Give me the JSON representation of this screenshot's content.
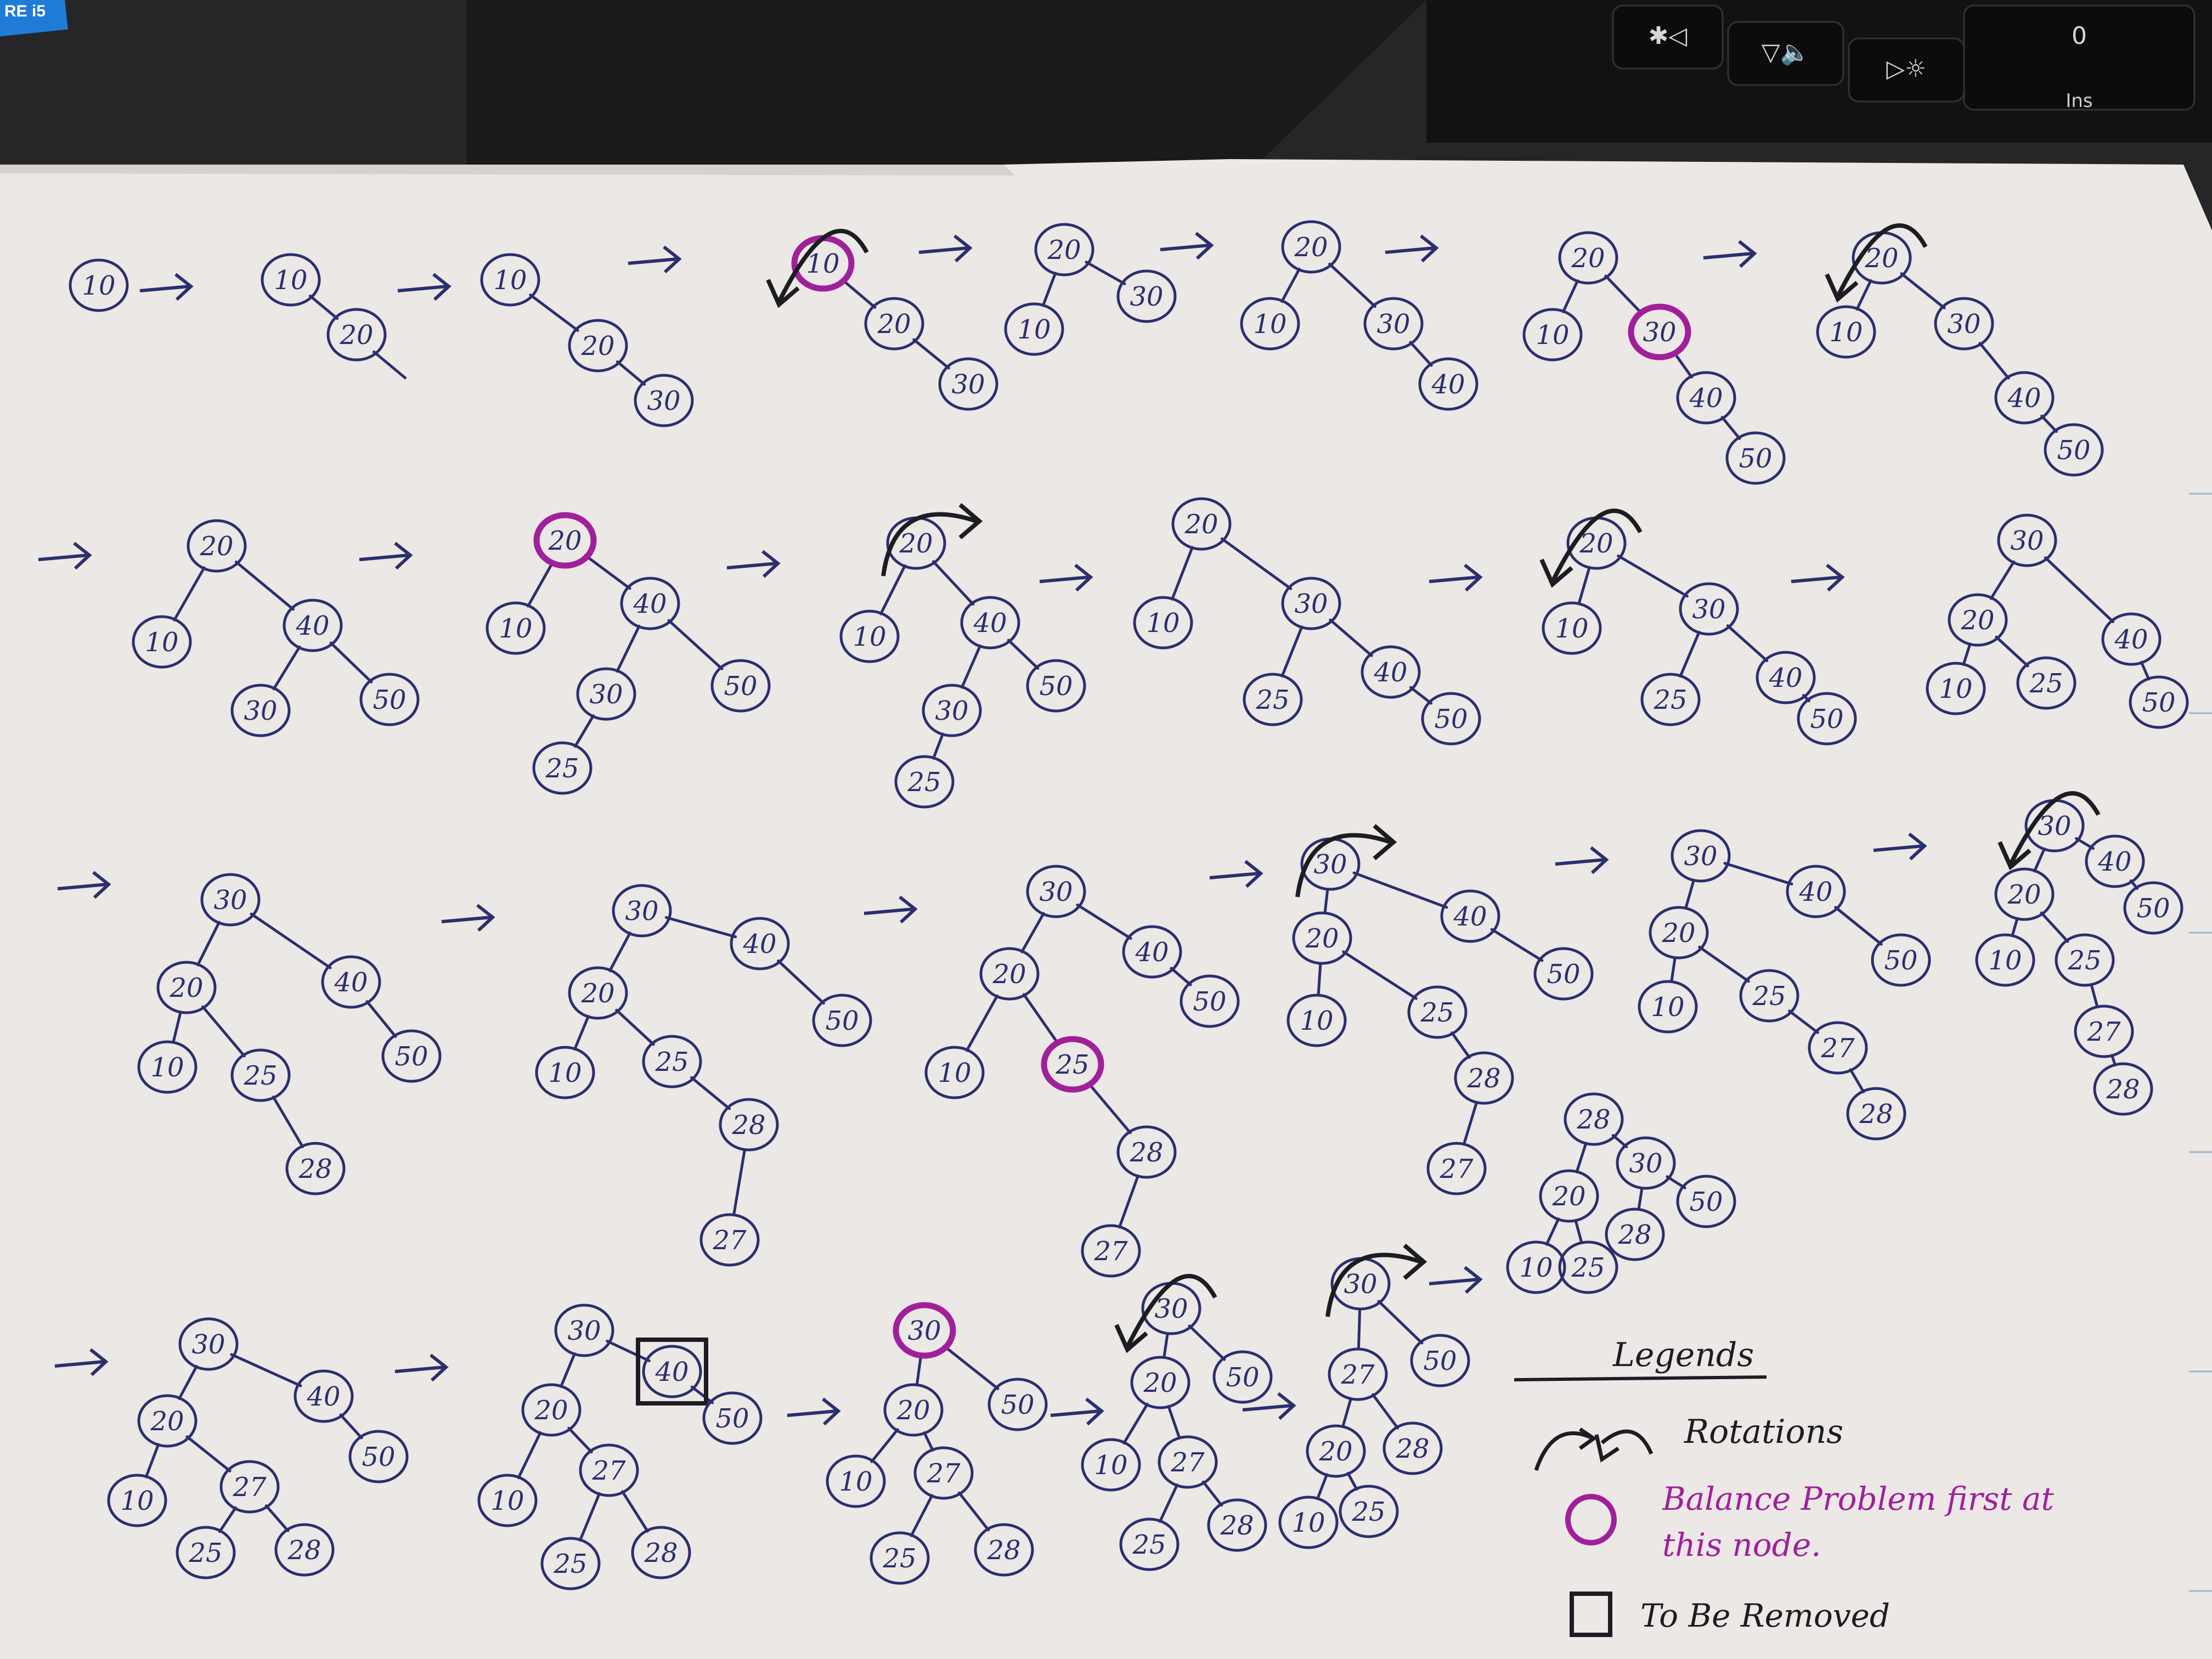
{
  "colors": {
    "ink": "#2b2f6e",
    "purple": "#a0209a",
    "black": "#1c1c22",
    "paper": "#ece9e6"
  },
  "laptop": {
    "sticker": "RE i5",
    "keys": [
      {
        "name": "key-brightness-down",
        "label": "✱◁"
      },
      {
        "name": "key-volume-down",
        "label": "▽🔈"
      },
      {
        "name": "key-brightness-up",
        "label": "▷☼"
      },
      {
        "name": "key-ins-0",
        "label": "0"
      }
    ],
    "ins_label": "Ins"
  },
  "arrow_glyph": "→",
  "trees": [
    {
      "row": 1,
      "nodes": [
        {
          "v": "10"
        }
      ]
    },
    {
      "row": 1,
      "nodes": [
        {
          "v": "10"
        },
        {
          "v": "20"
        }
      ]
    },
    {
      "row": 1,
      "nodes": [
        {
          "v": "10"
        },
        {
          "v": "20"
        },
        {
          "v": "30"
        }
      ]
    },
    {
      "row": 1,
      "highlight": "10",
      "rotation": "left",
      "nodes": [
        {
          "v": "10"
        },
        {
          "v": "20"
        },
        {
          "v": "30"
        }
      ]
    },
    {
      "row": 1,
      "nodes": [
        {
          "v": "20"
        },
        {
          "v": "10"
        },
        {
          "v": "30"
        }
      ]
    },
    {
      "row": 1,
      "nodes": [
        {
          "v": "20"
        },
        {
          "v": "10"
        },
        {
          "v": "30"
        },
        {
          "v": "40"
        }
      ]
    },
    {
      "row": 1,
      "highlight": "30",
      "nodes": [
        {
          "v": "20"
        },
        {
          "v": "10"
        },
        {
          "v": "30"
        },
        {
          "v": "40"
        },
        {
          "v": "50"
        }
      ]
    },
    {
      "row": 1,
      "rotation": "left",
      "nodes": [
        {
          "v": "20"
        },
        {
          "v": "10"
        },
        {
          "v": "30"
        },
        {
          "v": "40"
        },
        {
          "v": "50"
        }
      ]
    },
    {
      "row": 2,
      "nodes": [
        {
          "v": "20"
        },
        {
          "v": "10"
        },
        {
          "v": "40"
        },
        {
          "v": "30"
        },
        {
          "v": "50"
        }
      ]
    },
    {
      "row": 2,
      "highlight": "20",
      "nodes": [
        {
          "v": "20"
        },
        {
          "v": "10"
        },
        {
          "v": "40"
        },
        {
          "v": "30"
        },
        {
          "v": "50"
        },
        {
          "v": "25"
        }
      ]
    },
    {
      "row": 2,
      "rotation": "right",
      "nodes": [
        {
          "v": "20"
        },
        {
          "v": "10"
        },
        {
          "v": "40"
        },
        {
          "v": "30"
        },
        {
          "v": "50"
        },
        {
          "v": "25"
        }
      ]
    },
    {
      "row": 2,
      "nodes": [
        {
          "v": "20"
        },
        {
          "v": "10"
        },
        {
          "v": "30"
        },
        {
          "v": "25"
        },
        {
          "v": "40"
        },
        {
          "v": "50"
        }
      ]
    },
    {
      "row": 2,
      "rotation": "left",
      "nodes": [
        {
          "v": "20"
        },
        {
          "v": "10"
        },
        {
          "v": "30"
        },
        {
          "v": "25"
        },
        {
          "v": "40"
        },
        {
          "v": "50"
        }
      ]
    },
    {
      "row": 2,
      "nodes": [
        {
          "v": "30"
        },
        {
          "v": "20"
        },
        {
          "v": "40"
        },
        {
          "v": "10"
        },
        {
          "v": "25"
        },
        {
          "v": "50"
        }
      ]
    },
    {
      "row": 3,
      "nodes": [
        {
          "v": "30"
        },
        {
          "v": "20"
        },
        {
          "v": "40"
        },
        {
          "v": "10"
        },
        {
          "v": "25"
        },
        {
          "v": "50"
        },
        {
          "v": "28"
        }
      ]
    },
    {
      "row": 3,
      "nodes": [
        {
          "v": "30"
        },
        {
          "v": "20"
        },
        {
          "v": "40"
        },
        {
          "v": "10"
        },
        {
          "v": "25"
        },
        {
          "v": "50"
        },
        {
          "v": "28"
        },
        {
          "v": "27"
        }
      ]
    },
    {
      "row": 3,
      "highlight": "25",
      "nodes": [
        {
          "v": "30"
        },
        {
          "v": "20"
        },
        {
          "v": "40"
        },
        {
          "v": "10"
        },
        {
          "v": "25"
        },
        {
          "v": "50"
        },
        {
          "v": "28"
        },
        {
          "v": "27"
        }
      ]
    },
    {
      "row": 3,
      "rotation": "right",
      "nodes": [
        {
          "v": "30"
        },
        {
          "v": "20"
        },
        {
          "v": "40"
        },
        {
          "v": "10"
        },
        {
          "v": "25"
        },
        {
          "v": "50"
        },
        {
          "v": "28"
        },
        {
          "v": "27"
        }
      ]
    },
    {
      "row": 3,
      "nodes": [
        {
          "v": "30"
        },
        {
          "v": "20"
        },
        {
          "v": "40"
        },
        {
          "v": "10"
        },
        {
          "v": "25"
        },
        {
          "v": "50"
        },
        {
          "v": "27"
        },
        {
          "v": "28"
        }
      ]
    },
    {
      "row": 3,
      "rotation": "left",
      "nodes": [
        {
          "v": "30"
        },
        {
          "v": "40"
        },
        {
          "v": "50"
        },
        {
          "v": "20"
        },
        {
          "v": "10"
        },
        {
          "v": "25"
        },
        {
          "v": "27"
        },
        {
          "v": "28"
        }
      ]
    },
    {
      "row": 3,
      "nodes": [
        {
          "v": "28"
        },
        {
          "v": "20"
        },
        {
          "v": "30"
        },
        {
          "v": "10"
        },
        {
          "v": "25"
        },
        {
          "v": "28"
        },
        {
          "v": "50"
        }
      ]
    },
    {
      "row": 4,
      "nodes": [
        {
          "v": "30"
        },
        {
          "v": "20"
        },
        {
          "v": "40"
        },
        {
          "v": "10"
        },
        {
          "v": "27"
        },
        {
          "v": "50"
        },
        {
          "v": "25"
        },
        {
          "v": "28"
        }
      ]
    },
    {
      "row": 4,
      "remove": "40",
      "nodes": [
        {
          "v": "30"
        },
        {
          "v": "20"
        },
        {
          "v": "40"
        },
        {
          "v": "10"
        },
        {
          "v": "27"
        },
        {
          "v": "50"
        },
        {
          "v": "25"
        },
        {
          "v": "28"
        }
      ]
    },
    {
      "row": 4,
      "highlight": "30",
      "nodes": [
        {
          "v": "30"
        },
        {
          "v": "20"
        },
        {
          "v": "50"
        },
        {
          "v": "10"
        },
        {
          "v": "27"
        },
        {
          "v": "25"
        },
        {
          "v": "28"
        }
      ]
    },
    {
      "row": 4,
      "rotation": "left",
      "nodes": [
        {
          "v": "30"
        },
        {
          "v": "20"
        },
        {
          "v": "50"
        },
        {
          "v": "10"
        },
        {
          "v": "27"
        },
        {
          "v": "25"
        },
        {
          "v": "28"
        }
      ]
    },
    {
      "row": 4,
      "rotation": "right",
      "nodes": [
        {
          "v": "30"
        },
        {
          "v": "27"
        },
        {
          "v": "50"
        },
        {
          "v": "20"
        },
        {
          "v": "28"
        },
        {
          "v": "10"
        },
        {
          "v": "25"
        }
      ]
    }
  ],
  "legend": {
    "title": "Legends",
    "rotations": "Rotations",
    "balance": "Balance Problem first at this node.",
    "removed": "To Be Removed"
  }
}
